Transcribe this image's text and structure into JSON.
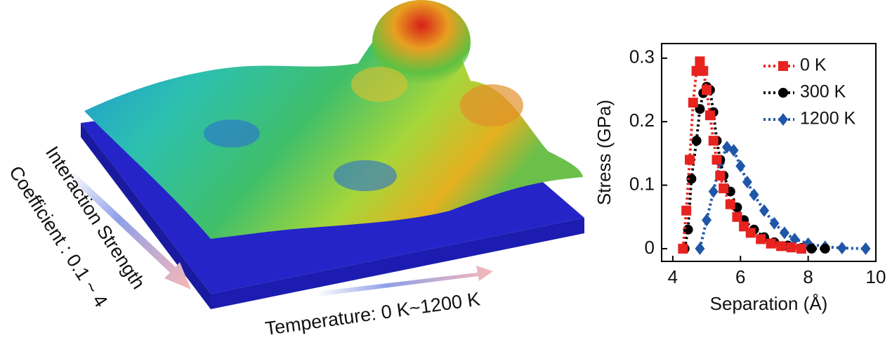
{
  "illustration": {
    "interaction_label": "Interaction Strength",
    "coefficient_label": "Coefficient : 0.1 ~ 4",
    "temperature_label": "Temperature: 0 K~1200 K"
  },
  "chart_data": {
    "type": "line",
    "xlabel": "Separation (Å)",
    "ylabel": "Stress (GPa)",
    "xlim": [
      3.67,
      10
    ],
    "ylim": [
      -0.02,
      0.323
    ],
    "xticks": [
      4,
      6,
      8,
      10
    ],
    "yticks": [
      0,
      0.1,
      0.2,
      0.3
    ],
    "legend": "upper right",
    "series": [
      {
        "name": "0 K",
        "color": "#e8231f",
        "marker": "square",
        "x": [
          4.3,
          4.4,
          4.5,
          4.6,
          4.7,
          4.8,
          4.9,
          5.0,
          5.1,
          5.2,
          5.3,
          5.4,
          5.5,
          5.7,
          5.9,
          6.1,
          6.3,
          6.6,
          6.9,
          7.2,
          7.5,
          7.8
        ],
        "values": [
          0.0,
          0.06,
          0.14,
          0.23,
          0.28,
          0.295,
          0.28,
          0.25,
          0.21,
          0.17,
          0.14,
          0.115,
          0.095,
          0.07,
          0.05,
          0.035,
          0.025,
          0.015,
          0.008,
          0.004,
          0.002,
          0.0
        ]
      },
      {
        "name": "300 K",
        "color": "#000000",
        "marker": "circle",
        "x": [
          4.35,
          4.45,
          4.55,
          4.7,
          4.8,
          4.9,
          5.0,
          5.1,
          5.2,
          5.3,
          5.4,
          5.5,
          5.7,
          5.9,
          6.1,
          6.4,
          6.7,
          7.0,
          7.4,
          7.8,
          8.1,
          8.5
        ],
        "values": [
          0.0,
          0.03,
          0.11,
          0.17,
          0.22,
          0.245,
          0.255,
          0.25,
          0.215,
          0.17,
          0.14,
          0.115,
          0.09,
          0.065,
          0.045,
          0.03,
          0.018,
          0.01,
          0.005,
          0.001,
          0.0,
          0.0
        ]
      },
      {
        "name": "1200 K",
        "color": "#1f56a8",
        "marker": "diamond",
        "x": [
          4.8,
          5.0,
          5.2,
          5.4,
          5.6,
          5.8,
          6.0,
          6.2,
          6.4,
          6.7,
          7.0,
          7.3,
          7.6,
          8.0,
          8.5,
          9.0,
          9.7
        ],
        "values": [
          0.0,
          0.045,
          0.09,
          0.135,
          0.16,
          0.155,
          0.13,
          0.105,
          0.085,
          0.06,
          0.04,
          0.025,
          0.015,
          0.008,
          0.003,
          0.001,
          0.0
        ]
      }
    ]
  }
}
